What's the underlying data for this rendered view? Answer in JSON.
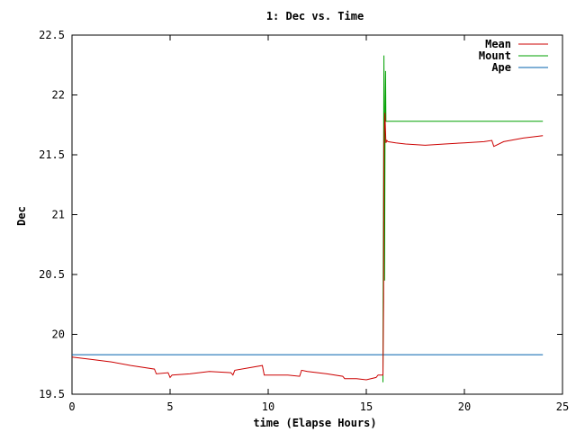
{
  "chart_data": {
    "type": "line",
    "title": "1: Dec vs. Time",
    "xlabel": "time (Elapse Hours)",
    "ylabel": "Dec",
    "xlim": [
      0,
      25
    ],
    "ylim": [
      19.5,
      22.5
    ],
    "x_ticks": [
      0,
      5,
      10,
      15,
      20,
      25
    ],
    "y_ticks": [
      19.5,
      20,
      20.5,
      21,
      21.5,
      22,
      22.5
    ],
    "x_tick_labels": [
      "0",
      "5",
      "10",
      "15",
      "20",
      "25"
    ],
    "y_tick_labels": [
      "19.5",
      "20",
      "20.5",
      "21",
      "21.5",
      "22",
      "22.5"
    ],
    "grid": false,
    "legend_position": "top-right",
    "series": [
      {
        "name": "Mean",
        "color": "#cc0000",
        "x": [
          0,
          1,
          2,
          3,
          4.2,
          4.3,
          4.9,
          5.0,
          5.1,
          6,
          7,
          8.1,
          8.2,
          8.3,
          9,
          9.7,
          9.8,
          10,
          11,
          11.6,
          11.7,
          12,
          13,
          13.8,
          13.9,
          14.5,
          15.0,
          15.5,
          15.6,
          15.85,
          15.88,
          15.9,
          15.92,
          15.95,
          16.0,
          16.05,
          16.1,
          16.5,
          17,
          18,
          19,
          20,
          21,
          21.4,
          21.5,
          22,
          23,
          24
        ],
        "y": [
          19.81,
          19.79,
          19.77,
          19.74,
          19.71,
          19.67,
          19.68,
          19.64,
          19.66,
          19.67,
          19.69,
          19.68,
          19.66,
          19.7,
          19.72,
          19.74,
          19.66,
          19.66,
          19.66,
          19.65,
          19.7,
          19.69,
          19.67,
          19.65,
          19.63,
          19.63,
          19.62,
          19.64,
          19.66,
          19.66,
          20.28,
          21.58,
          21.71,
          21.85,
          21.6,
          21.62,
          21.61,
          21.6,
          21.59,
          21.58,
          21.59,
          21.6,
          21.61,
          21.62,
          21.57,
          21.61,
          21.64,
          21.66
        ]
      },
      {
        "name": "Mount",
        "color": "#00a000",
        "x": [
          15.85,
          15.86,
          15.9,
          15.93,
          15.96,
          15.98,
          16.0,
          16.05,
          24.0
        ],
        "y": [
          19.6,
          20.3,
          22.33,
          20.45,
          21.9,
          22.2,
          21.78,
          21.78,
          21.78
        ]
      },
      {
        "name": "Ape",
        "color": "#0060ad",
        "x": [
          0,
          15.88,
          15.89,
          24.0
        ],
        "y": [
          19.83,
          19.83,
          19.83,
          19.83
        ]
      }
    ]
  }
}
